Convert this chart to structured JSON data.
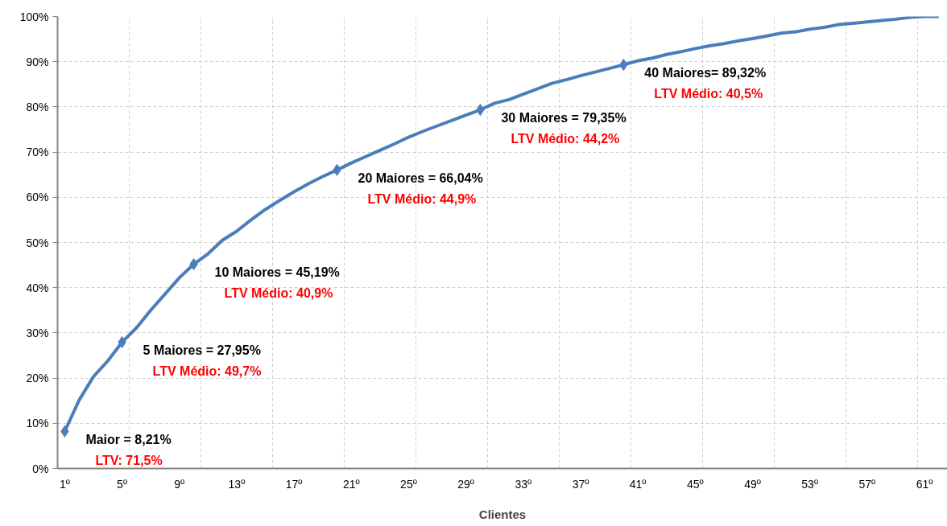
{
  "chart_data": {
    "type": "line",
    "xlabel": "Clientes",
    "x": [
      1,
      2,
      3,
      4,
      5,
      6,
      7,
      8,
      9,
      10,
      11,
      12,
      13,
      14,
      15,
      16,
      17,
      18,
      19,
      20,
      21,
      22,
      23,
      24,
      25,
      26,
      27,
      28,
      29,
      30,
      31,
      32,
      33,
      34,
      35,
      36,
      37,
      38,
      39,
      40,
      41,
      42,
      43,
      44,
      45,
      46,
      47,
      48,
      49,
      50,
      51,
      52,
      53,
      54,
      55,
      56,
      57,
      58,
      59,
      60,
      61,
      62
    ],
    "series": [
      {
        "color": "#4a7ebb",
        "marker": "none",
        "values": [
          8.21,
          15.1,
          20.3,
          23.8,
          27.95,
          31.1,
          35.0,
          38.6,
          42.2,
          45.19,
          47.5,
          50.5,
          52.5,
          55.0,
          57.3,
          59.3,
          61.2,
          63.0,
          64.6,
          66.04,
          67.6,
          69.0,
          70.4,
          71.8,
          73.3,
          74.6,
          75.8,
          77.0,
          78.2,
          79.35,
          80.8,
          81.6,
          82.8,
          84.0,
          85.2,
          86.0,
          86.9,
          87.7,
          88.5,
          89.32,
          90.2,
          90.8,
          91.6,
          92.2,
          92.9,
          93.5,
          94.0,
          94.6,
          95.1,
          95.7,
          96.3,
          96.6,
          97.2,
          97.6,
          98.2,
          98.5,
          98.8,
          99.1,
          99.4,
          99.8,
          100,
          100
        ]
      },
      {
        "type": "scatter",
        "color": "#4a7ebb",
        "marker": "diamond",
        "x": [
          1,
          5,
          10,
          20,
          30,
          40
        ],
        "values": [
          8.21,
          27.95,
          45.19,
          66.04,
          79.35,
          89.32
        ]
      }
    ],
    "xlim": [
      0.5,
      62.6
    ],
    "xticks": [
      {
        "value": 1,
        "label": "1º"
      },
      {
        "value": 5,
        "label": "5º"
      },
      {
        "value": 9,
        "label": "9º"
      },
      {
        "value": 13,
        "label": "13º"
      },
      {
        "value": 17,
        "label": "17º"
      },
      {
        "value": 21,
        "label": "21º"
      },
      {
        "value": 25,
        "label": "25º"
      },
      {
        "value": 29,
        "label": "29º"
      },
      {
        "value": 33,
        "label": "33º"
      },
      {
        "value": 37,
        "label": "37º"
      },
      {
        "value": 41,
        "label": "41º"
      },
      {
        "value": 45,
        "label": "45º"
      },
      {
        "value": 49,
        "label": "49º"
      },
      {
        "value": 53,
        "label": "53º"
      },
      {
        "value": 57,
        "label": "57º"
      },
      {
        "value": 61,
        "label": "61º"
      },
      {
        "value": 0.5,
        "label": null
      },
      {
        "value": 5.5,
        "label": null
      },
      {
        "value": 10.5,
        "label": null
      },
      {
        "value": 15.5,
        "label": null
      },
      {
        "value": 20.5,
        "label": null
      },
      {
        "value": 25.5,
        "label": null
      },
      {
        "value": 30.5,
        "label": null
      },
      {
        "value": 35.5,
        "label": null
      },
      {
        "value": 40.5,
        "label": null
      },
      {
        "value": 45.5,
        "label": null
      },
      {
        "value": 50.5,
        "label": null
      },
      {
        "value": 55.5,
        "label": null
      },
      {
        "value": 60.5,
        "label": null
      }
    ],
    "ylim": [
      0,
      100
    ],
    "yticks": [
      {
        "value": 0,
        "label": "0%"
      },
      {
        "value": 10,
        "label": "10%"
      },
      {
        "value": 20,
        "label": "20%"
      },
      {
        "value": 30,
        "label": "30%"
      },
      {
        "value": 40,
        "label": "40%"
      },
      {
        "value": 50,
        "label": "50%"
      },
      {
        "value": 60,
        "label": "60%"
      },
      {
        "value": 70,
        "label": "70%"
      },
      {
        "value": 80,
        "label": "80%"
      },
      {
        "value": 90,
        "label": "90%"
      },
      {
        "value": 100,
        "label": "100%"
      }
    ],
    "grid": true,
    "line_style": "solid",
    "annotations": [
      {
        "text": "Maior = 8,21%",
        "x": 1,
        "y": 8.21
      },
      {
        "text": "LTV: 71,5%",
        "x": 1,
        "y": 8.21
      },
      {
        "text": "5 Maiores = 27,95%",
        "x": 5,
        "y": 27.95
      },
      {
        "text": "LTV Médio:  49,7%",
        "x": 5,
        "y": 27.95
      },
      {
        "text": "10 Maiores = 45,19%",
        "x": 10,
        "y": 45.19
      },
      {
        "text": "LTV Médio:  40,9%",
        "x": 10,
        "y": 45.19
      },
      {
        "text": "20 Maiores = 66,04%",
        "x": 20,
        "y": 66.04
      },
      {
        "text": "LTV Médio:  44,9%",
        "x": 20,
        "y": 66.04
      },
      {
        "text": "30 Maiores = 79,35%",
        "x": 30,
        "y": 79.35
      },
      {
        "text": "LTV Médio:  44,2%",
        "x": 30,
        "y": 79.35
      },
      {
        "text": "40 Maiores= 89,32%",
        "x": 40,
        "y": 89.32
      },
      {
        "text": "LTV Médio:  40,5%",
        "x": 40,
        "y": 89.32
      }
    ]
  }
}
